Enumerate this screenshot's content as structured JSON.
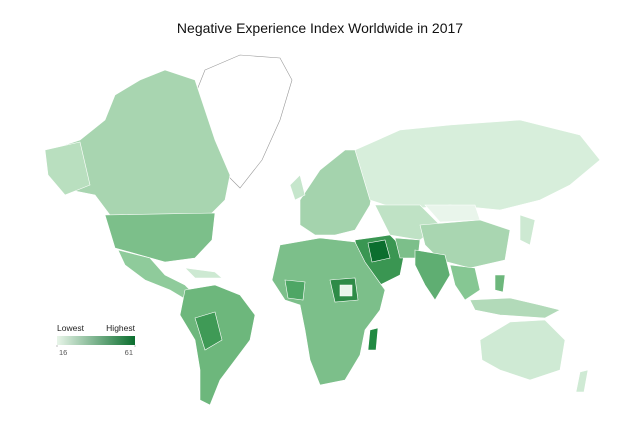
{
  "title": "Negative Experience Index Worldwide in 2017",
  "legend": {
    "low_label": "Lowest",
    "high_label": "Highest",
    "min": 16,
    "max": 61,
    "colors": [
      "#e8f5e9",
      "#0b6e2e"
    ]
  }
}
